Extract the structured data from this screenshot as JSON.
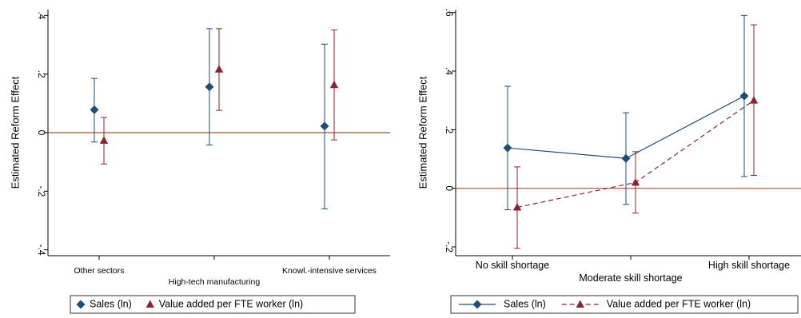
{
  "colors": {
    "series1": "#1f4e79",
    "series2": "#8b2331",
    "reference_line": "#a0522d",
    "axis": "#000000"
  },
  "chart_data": [
    {
      "type": "scatter",
      "ylabel": "Estimated Reform Effect",
      "categories": [
        "Other sectors",
        "High-tech manufacturing",
        "Knowl.-intensive services"
      ],
      "yticks": [
        -0.4,
        -0.2,
        0,
        0.2,
        0.4
      ],
      "ytick_labels": [
        "-.4",
        "-.2",
        "0",
        ".2",
        ".4"
      ],
      "ylim": [
        -0.42,
        0.42
      ],
      "reference_line_y": 0,
      "grid": false,
      "legend_position": "bottom",
      "connect_points": false,
      "series": [
        {
          "name": "Sales (ln)",
          "marker": "diamond",
          "values": [
            0.078,
            0.156,
            0.022
          ],
          "ci_low": [
            -0.032,
            -0.042,
            -0.26
          ],
          "ci_high": [
            0.185,
            0.355,
            0.302
          ]
        },
        {
          "name": "Value added per FTE worker (ln)",
          "marker": "triangle",
          "values": [
            -0.027,
            0.216,
            0.163
          ],
          "ci_low": [
            -0.107,
            0.076,
            -0.025
          ],
          "ci_high": [
            0.052,
            0.355,
            0.351
          ]
        }
      ]
    },
    {
      "type": "line",
      "ylabel": "Estimated Reform Effect",
      "categories": [
        "No skill shortage",
        "Moderate skill shortage",
        "High skill shortage"
      ],
      "yticks": [
        -0.2,
        0,
        0.2,
        0.4,
        0.6
      ],
      "ytick_labels": [
        "-.2",
        "0",
        ".2",
        ".4",
        ".6"
      ],
      "ylim": [
        -0.23,
        0.61
      ],
      "reference_line_y": 0,
      "grid": false,
      "legend_position": "bottom",
      "connect_points": true,
      "series": [
        {
          "name": "Sales (ln)",
          "marker": "diamond",
          "line_style": "solid",
          "values": [
            0.138,
            0.102,
            0.315
          ],
          "ci_low": [
            -0.073,
            -0.055,
            0.04
          ],
          "ci_high": [
            0.348,
            0.258,
            0.59
          ]
        },
        {
          "name": "Value added per FTE worker (ln)",
          "marker": "triangle",
          "line_style": "dashed",
          "values": [
            -0.065,
            0.02,
            0.3
          ],
          "ci_low": [
            -0.205,
            -0.085,
            0.044
          ],
          "ci_high": [
            0.073,
            0.125,
            0.558
          ]
        }
      ]
    }
  ]
}
